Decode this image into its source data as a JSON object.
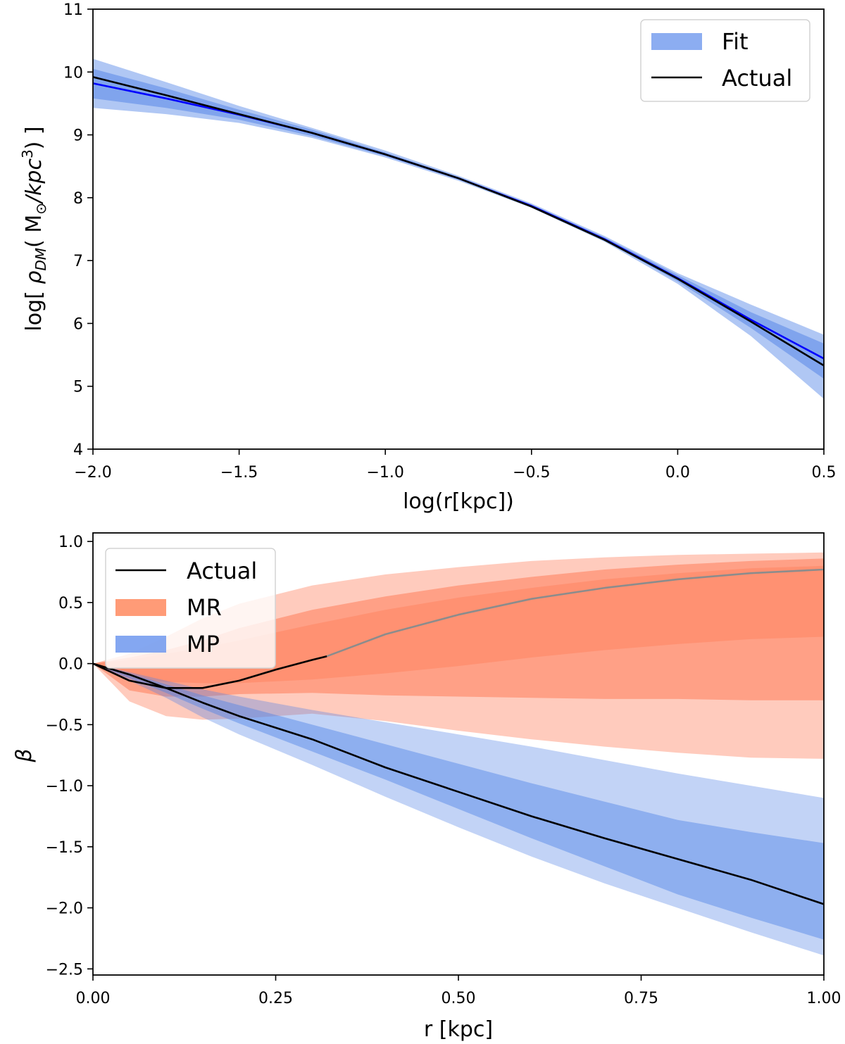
{
  "chart_data": [
    {
      "type": "line",
      "panel": "top",
      "title": "",
      "xlabel": "log(r[kpc])",
      "ylabel_parts": {
        "prefix": "log[ ",
        "rho": "ρ",
        "rho_sub": "DM",
        "mid": "( M",
        "sun": "⊙",
        "unit": "/kpc",
        "unit_exp": "3",
        "suffix": ") ]"
      },
      "xlim": [
        -2.0,
        0.5
      ],
      "ylim": [
        4,
        11
      ],
      "xticks": [
        -2.0,
        -1.5,
        -1.0,
        -0.5,
        0.0,
        0.5
      ],
      "xtick_labels": [
        "−2.0",
        "−1.5",
        "−1.0",
        "−0.5",
        "0.0",
        "0.5"
      ],
      "yticks": [
        4,
        5,
        6,
        7,
        8,
        9,
        10,
        11
      ],
      "ytick_labels": [
        "4",
        "5",
        "6",
        "7",
        "8",
        "9",
        "10",
        "11"
      ],
      "grid": false,
      "legend": {
        "position": "top-right",
        "entries": [
          {
            "label": "Fit",
            "kind": "patch",
            "color": "#6f98ee"
          },
          {
            "label": "Actual",
            "kind": "line",
            "color": "#000000"
          }
        ]
      },
      "x": [
        -2.0,
        -1.75,
        -1.5,
        -1.25,
        -1.0,
        -0.75,
        -0.5,
        -0.25,
        0.0,
        0.25,
        0.5
      ],
      "series": [
        {
          "name": "Actual",
          "color": "#000000",
          "values": [
            9.92,
            9.63,
            9.33,
            9.03,
            8.69,
            8.31,
            7.86,
            7.33,
            6.71,
            6.03,
            5.33
          ]
        },
        {
          "name": "Fit median",
          "color": "#0000ff",
          "values": [
            9.82,
            9.58,
            9.32,
            9.03,
            8.69,
            8.31,
            7.87,
            7.34,
            6.72,
            6.06,
            5.44
          ]
        }
      ],
      "bands": [
        {
          "name": "Fit 95%",
          "color": "#4f82e6",
          "opacity": 0.45,
          "lower": [
            9.43,
            9.33,
            9.19,
            8.95,
            8.64,
            8.27,
            7.84,
            7.3,
            6.63,
            5.8,
            4.8
          ],
          "upper": [
            10.21,
            9.84,
            9.46,
            9.11,
            8.75,
            8.35,
            7.91,
            7.39,
            6.8,
            6.3,
            5.82
          ]
        },
        {
          "name": "Fit 68%",
          "color": "#4f82e6",
          "opacity": 0.5,
          "lower": [
            9.58,
            9.43,
            9.24,
            8.98,
            8.66,
            8.29,
            7.85,
            7.32,
            6.67,
            5.93,
            5.12
          ],
          "upper": [
            10.05,
            9.74,
            9.4,
            9.08,
            8.72,
            8.33,
            7.89,
            7.37,
            6.77,
            6.18,
            5.68
          ]
        }
      ]
    },
    {
      "type": "line",
      "panel": "bottom",
      "title": "",
      "xlabel": "r [kpc]",
      "ylabel": "β",
      "xlim": [
        0.0,
        1.0
      ],
      "ylim": [
        -2.55,
        1.07
      ],
      "xticks": [
        0.0,
        0.25,
        0.5,
        0.75,
        1.0
      ],
      "xtick_labels": [
        "0.00",
        "0.25",
        "0.50",
        "0.75",
        "1.00"
      ],
      "yticks": [
        -2.5,
        -2.0,
        -1.5,
        -1.0,
        -0.5,
        0.0,
        0.5,
        1.0
      ],
      "ytick_labels": [
        "−2.5",
        "−2.0",
        "−1.5",
        "−1.0",
        "−0.5",
        "0.0",
        "0.5",
        "1.0"
      ],
      "grid": false,
      "legend": {
        "position": "top-left",
        "entries": [
          {
            "label": "Actual",
            "kind": "line",
            "color": "#000000"
          },
          {
            "label": "MR",
            "kind": "patch",
            "color": "#ff8a5f"
          },
          {
            "label": "MP",
            "kind": "patch",
            "color": "#6f98ee"
          }
        ]
      },
      "series": [
        {
          "name": "MP Actual",
          "color": "#000000",
          "x": [
            0.0,
            0.05,
            0.1,
            0.15,
            0.2,
            0.3,
            0.4,
            0.5,
            0.6,
            0.7,
            0.8,
            0.9,
            1.0
          ],
          "values": [
            0.0,
            -0.09,
            -0.2,
            -0.32,
            -0.43,
            -0.62,
            -0.85,
            -1.05,
            -1.25,
            -1.43,
            -1.6,
            -1.77,
            -1.97
          ]
        },
        {
          "name": "MR Actual",
          "color": "#000000",
          "x": [
            0.0,
            0.05,
            0.1,
            0.15,
            0.2,
            0.25,
            0.3,
            0.32
          ],
          "values": [
            0.0,
            -0.14,
            -0.2,
            -0.2,
            -0.14,
            -0.05,
            0.03,
            0.06
          ]
        },
        {
          "name": "MR Actual extrapolated",
          "color": "#8c8c8c",
          "x": [
            0.32,
            0.4,
            0.5,
            0.6,
            0.7,
            0.8,
            0.9,
            1.0
          ],
          "values": [
            0.06,
            0.24,
            0.4,
            0.53,
            0.62,
            0.69,
            0.74,
            0.77
          ]
        }
      ],
      "bands": [
        {
          "name": "MR 95%",
          "color": "#ff7e5a",
          "opacity": 0.4,
          "x": [
            0.0,
            0.05,
            0.1,
            0.15,
            0.2,
            0.3,
            0.4,
            0.5,
            0.6,
            0.7,
            0.8,
            0.9,
            1.0
          ],
          "lower": [
            0.0,
            -0.31,
            -0.43,
            -0.46,
            -0.45,
            -0.41,
            -0.47,
            -0.55,
            -0.62,
            -0.68,
            -0.73,
            -0.77,
            -0.78
          ],
          "upper": [
            0.0,
            0.08,
            0.22,
            0.37,
            0.49,
            0.64,
            0.73,
            0.79,
            0.84,
            0.87,
            0.89,
            0.9,
            0.91
          ]
        },
        {
          "name": "MR 68%",
          "color": "#ff7e5a",
          "opacity": 0.55,
          "x": [
            0.0,
            0.05,
            0.1,
            0.15,
            0.2,
            0.3,
            0.4,
            0.5,
            0.6,
            0.7,
            0.8,
            0.9,
            1.0
          ],
          "lower": [
            0.0,
            -0.22,
            -0.27,
            -0.27,
            -0.25,
            -0.24,
            -0.26,
            -0.27,
            -0.28,
            -0.29,
            -0.29,
            -0.3,
            -0.3
          ],
          "upper": [
            0.0,
            0.05,
            0.11,
            0.19,
            0.29,
            0.44,
            0.55,
            0.64,
            0.71,
            0.77,
            0.81,
            0.84,
            0.86
          ]
        },
        {
          "name": "MR 50%",
          "color": "#ff7e5a",
          "opacity": 0.45,
          "x": [
            0.0,
            0.05,
            0.1,
            0.15,
            0.2,
            0.3,
            0.4,
            0.5,
            0.6,
            0.7,
            0.8,
            0.9,
            1.0
          ],
          "lower": [
            0.0,
            -0.12,
            -0.15,
            -0.16,
            -0.16,
            -0.13,
            -0.08,
            -0.02,
            0.05,
            0.11,
            0.16,
            0.2,
            0.22
          ],
          "upper": [
            0.0,
            0.03,
            0.08,
            0.13,
            0.19,
            0.32,
            0.44,
            0.54,
            0.62,
            0.69,
            0.74,
            0.78,
            0.8
          ]
        },
        {
          "name": "MP 95%",
          "color": "#4f82e6",
          "opacity": 0.35,
          "x": [
            0.0,
            0.05,
            0.1,
            0.15,
            0.2,
            0.3,
            0.4,
            0.5,
            0.6,
            0.7,
            0.8,
            0.9,
            1.0
          ],
          "lower": [
            0.0,
            -0.14,
            -0.28,
            -0.44,
            -0.58,
            -0.83,
            -1.09,
            -1.34,
            -1.58,
            -1.8,
            -2.0,
            -2.2,
            -2.39
          ],
          "upper": [
            0.0,
            -0.07,
            -0.14,
            -0.21,
            -0.27,
            -0.38,
            -0.48,
            -0.58,
            -0.68,
            -0.79,
            -0.9,
            -1.0,
            -1.1
          ]
        },
        {
          "name": "MP 68%",
          "color": "#4f82e6",
          "opacity": 0.45,
          "x": [
            0.0,
            0.05,
            0.1,
            0.15,
            0.2,
            0.3,
            0.4,
            0.5,
            0.6,
            0.7,
            0.8,
            0.9,
            1.0
          ],
          "lower": [
            0.0,
            -0.12,
            -0.24,
            -0.37,
            -0.49,
            -0.72,
            -0.95,
            -1.19,
            -1.43,
            -1.66,
            -1.89,
            -2.08,
            -2.26
          ],
          "upper": [
            0.0,
            -0.08,
            -0.17,
            -0.26,
            -0.34,
            -0.5,
            -0.66,
            -0.82,
            -0.98,
            -1.13,
            -1.28,
            -1.38,
            -1.47
          ]
        }
      ]
    }
  ]
}
